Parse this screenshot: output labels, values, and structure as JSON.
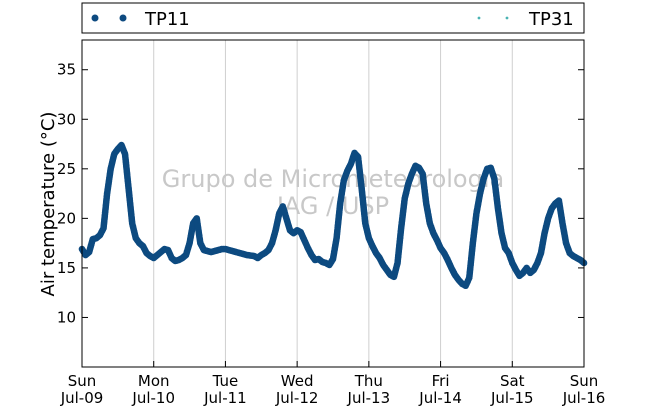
{
  "chart_data": {
    "type": "scatter",
    "title": "",
    "ylabel": "Air temperature (°C)",
    "xlabel": "",
    "ylim": [
      5,
      38
    ],
    "xlim": [
      0,
      7
    ],
    "yticks": [
      10,
      15,
      20,
      25,
      30,
      35
    ],
    "xticks": [
      {
        "x": 0,
        "day": "Sun",
        "date": "Jul-09"
      },
      {
        "x": 1,
        "day": "Mon",
        "date": "Jul-10"
      },
      {
        "x": 2,
        "day": "Tue",
        "date": "Jul-11"
      },
      {
        "x": 3,
        "day": "Wed",
        "date": "Jul-12"
      },
      {
        "x": 4,
        "day": "Thu",
        "date": "Jul-13"
      },
      {
        "x": 5,
        "day": "Fri",
        "date": "Jul-14"
      },
      {
        "x": 6,
        "day": "Sat",
        "date": "Jul-15"
      },
      {
        "x": 7,
        "day": "Sun",
        "date": "Jul-16"
      }
    ],
    "grid": "vertical",
    "legend_placement": "top",
    "watermark": [
      "Grupo de Micrometeorologia",
      "IAG / USP"
    ],
    "series": [
      {
        "name": "TP11",
        "color": "#0d4a80",
        "marker": "circle",
        "points": [
          [
            0.0,
            16.9
          ],
          [
            0.05,
            16.3
          ],
          [
            0.1,
            16.6
          ],
          [
            0.15,
            17.9
          ],
          [
            0.2,
            18.0
          ],
          [
            0.25,
            18.3
          ],
          [
            0.3,
            19.0
          ],
          [
            0.35,
            22.5
          ],
          [
            0.4,
            25.0
          ],
          [
            0.45,
            26.5
          ],
          [
            0.5,
            27.0
          ],
          [
            0.55,
            27.4
          ],
          [
            0.6,
            26.5
          ],
          [
            0.65,
            23.0
          ],
          [
            0.7,
            19.5
          ],
          [
            0.75,
            18.0
          ],
          [
            0.8,
            17.5
          ],
          [
            0.85,
            17.2
          ],
          [
            0.9,
            16.5
          ],
          [
            0.95,
            16.2
          ],
          [
            1.0,
            16.0
          ],
          [
            1.05,
            16.3
          ],
          [
            1.1,
            16.6
          ],
          [
            1.15,
            16.9
          ],
          [
            1.2,
            16.8
          ],
          [
            1.25,
            16.0
          ],
          [
            1.3,
            15.7
          ],
          [
            1.35,
            15.8
          ],
          [
            1.4,
            16.0
          ],
          [
            1.45,
            16.3
          ],
          [
            1.5,
            17.5
          ],
          [
            1.55,
            19.5
          ],
          [
            1.6,
            20.0
          ],
          [
            1.65,
            17.5
          ],
          [
            1.7,
            16.8
          ],
          [
            1.75,
            16.7
          ],
          [
            1.8,
            16.6
          ],
          [
            1.85,
            16.7
          ],
          [
            1.9,
            16.8
          ],
          [
            1.95,
            16.9
          ],
          [
            2.0,
            16.9
          ],
          [
            2.1,
            16.7
          ],
          [
            2.2,
            16.5
          ],
          [
            2.3,
            16.3
          ],
          [
            2.4,
            16.2
          ],
          [
            2.45,
            16.0
          ],
          [
            2.5,
            16.3
          ],
          [
            2.55,
            16.5
          ],
          [
            2.6,
            16.8
          ],
          [
            2.65,
            17.5
          ],
          [
            2.7,
            18.8
          ],
          [
            2.75,
            20.5
          ],
          [
            2.8,
            21.2
          ],
          [
            2.85,
            20.0
          ],
          [
            2.9,
            18.8
          ],
          [
            2.95,
            18.5
          ],
          [
            3.0,
            18.8
          ],
          [
            3.05,
            18.6
          ],
          [
            3.1,
            17.8
          ],
          [
            3.15,
            17.0
          ],
          [
            3.2,
            16.3
          ],
          [
            3.25,
            15.8
          ],
          [
            3.3,
            15.9
          ],
          [
            3.35,
            15.6
          ],
          [
            3.4,
            15.5
          ],
          [
            3.45,
            15.3
          ],
          [
            3.5,
            15.9
          ],
          [
            3.55,
            18.0
          ],
          [
            3.6,
            21.5
          ],
          [
            3.65,
            23.8
          ],
          [
            3.7,
            24.8
          ],
          [
            3.75,
            25.5
          ],
          [
            3.8,
            26.6
          ],
          [
            3.85,
            26.2
          ],
          [
            3.9,
            23.0
          ],
          [
            3.95,
            19.5
          ],
          [
            4.0,
            18.0
          ],
          [
            4.05,
            17.2
          ],
          [
            4.1,
            16.5
          ],
          [
            4.15,
            16.0
          ],
          [
            4.2,
            15.3
          ],
          [
            4.25,
            14.8
          ],
          [
            4.3,
            14.3
          ],
          [
            4.35,
            14.1
          ],
          [
            4.4,
            15.5
          ],
          [
            4.45,
            19.0
          ],
          [
            4.5,
            22.0
          ],
          [
            4.55,
            23.5
          ],
          [
            4.6,
            24.5
          ],
          [
            4.65,
            25.3
          ],
          [
            4.7,
            25.1
          ],
          [
            4.75,
            24.5
          ],
          [
            4.8,
            21.5
          ],
          [
            4.85,
            19.5
          ],
          [
            4.9,
            18.5
          ],
          [
            4.95,
            17.8
          ],
          [
            5.0,
            17.0
          ],
          [
            5.05,
            16.5
          ],
          [
            5.1,
            15.8
          ],
          [
            5.15,
            15.0
          ],
          [
            5.2,
            14.3
          ],
          [
            5.25,
            13.8
          ],
          [
            5.3,
            13.4
          ],
          [
            5.35,
            13.2
          ],
          [
            5.4,
            14.0
          ],
          [
            5.45,
            17.5
          ],
          [
            5.5,
            20.5
          ],
          [
            5.55,
            22.5
          ],
          [
            5.6,
            24.0
          ],
          [
            5.65,
            25.0
          ],
          [
            5.7,
            25.1
          ],
          [
            5.75,
            24.0
          ],
          [
            5.8,
            21.0
          ],
          [
            5.85,
            18.5
          ],
          [
            5.9,
            17.0
          ],
          [
            5.95,
            16.5
          ],
          [
            6.0,
            15.5
          ],
          [
            6.05,
            14.8
          ],
          [
            6.1,
            14.2
          ],
          [
            6.15,
            14.5
          ],
          [
            6.2,
            15.0
          ],
          [
            6.25,
            14.5
          ],
          [
            6.3,
            14.8
          ],
          [
            6.35,
            15.5
          ],
          [
            6.4,
            16.5
          ],
          [
            6.45,
            18.5
          ],
          [
            6.5,
            20.0
          ],
          [
            6.55,
            21.0
          ],
          [
            6.6,
            21.5
          ],
          [
            6.65,
            21.8
          ],
          [
            6.7,
            19.5
          ],
          [
            6.75,
            17.5
          ],
          [
            6.8,
            16.5
          ],
          [
            6.85,
            16.2
          ],
          [
            6.9,
            16.0
          ],
          [
            6.95,
            15.8
          ],
          [
            7.0,
            15.5
          ]
        ]
      },
      {
        "name": "TP31",
        "color": "#4ab3b3",
        "marker": "dot",
        "points": []
      }
    ]
  }
}
